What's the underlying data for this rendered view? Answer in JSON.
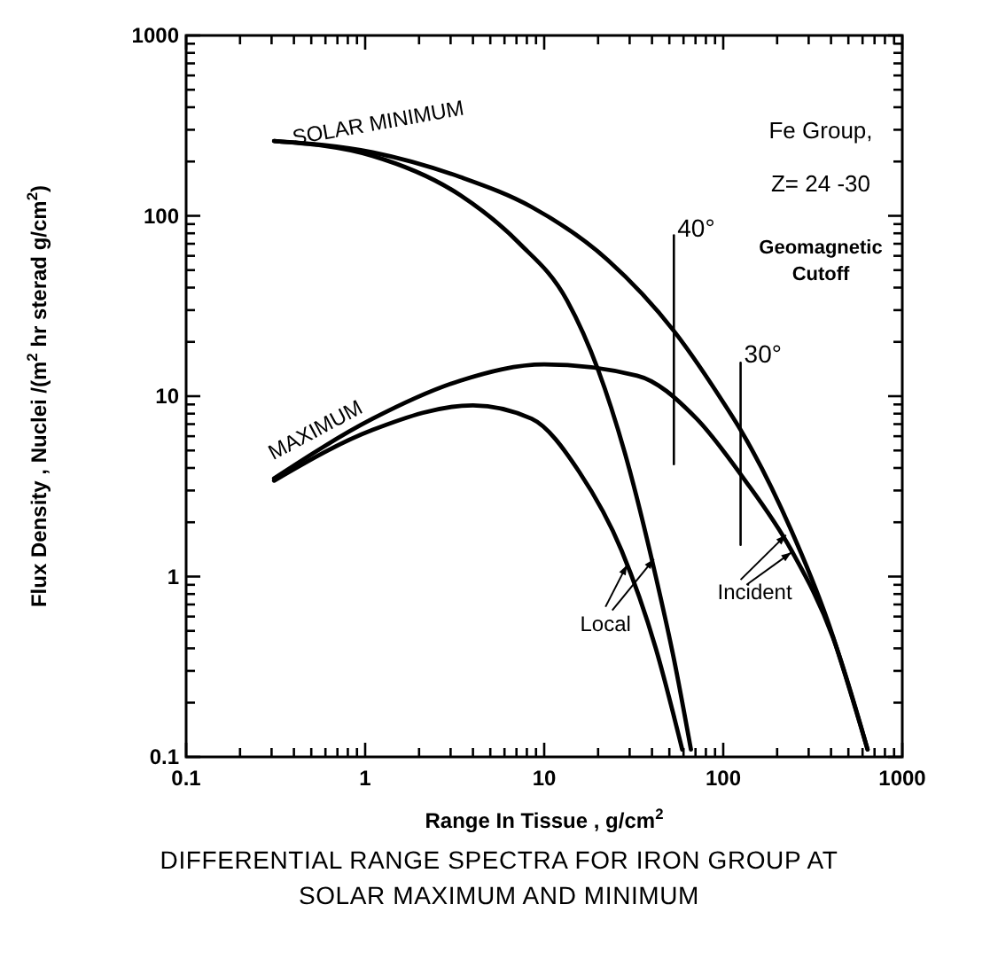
{
  "chart_data": {
    "type": "line",
    "title": "DIFFERENTIAL RANGE SPECTRA FOR IRON GROUP AT SOLAR MAXIMUM AND MINIMUM",
    "xlabel": "Range In Tissue , g/cm$^{2}$",
    "ylabel": "Flux Density , Nuclei /(m$^{2}$ hr sterad g/cm$^{2}$)",
    "log": "xy",
    "grid": false,
    "marker": "none",
    "line_style": "solid",
    "xlim": [
      0.1,
      1000
    ],
    "ylim": [
      0.1,
      1000
    ],
    "xticks": [
      0.1,
      {
        "value": 0.2,
        "label": null
      },
      {
        "value": 0.3,
        "label": null
      },
      {
        "value": 0.4,
        "label": null
      },
      {
        "value": 0.5,
        "label": null
      },
      {
        "value": 0.6,
        "label": null
      },
      {
        "value": 0.7,
        "label": null
      },
      {
        "value": 0.8,
        "label": null
      },
      {
        "value": 0.9,
        "label": null
      },
      1,
      {
        "value": 2,
        "label": null
      },
      {
        "value": 3,
        "label": null
      },
      {
        "value": 4,
        "label": null
      },
      {
        "value": 5,
        "label": null
      },
      {
        "value": 6,
        "label": null
      },
      {
        "value": 7,
        "label": null
      },
      {
        "value": 8,
        "label": null
      },
      {
        "value": 9,
        "label": null
      },
      10,
      {
        "value": 20,
        "label": null
      },
      {
        "value": 30,
        "label": null
      },
      {
        "value": 40,
        "label": null
      },
      {
        "value": 50,
        "label": null
      },
      {
        "value": 60,
        "label": null
      },
      {
        "value": 70,
        "label": null
      },
      {
        "value": 80,
        "label": null
      },
      {
        "value": 90,
        "label": null
      },
      100,
      {
        "value": 200,
        "label": null
      },
      {
        "value": 300,
        "label": null
      },
      {
        "value": 400,
        "label": null
      },
      {
        "value": 500,
        "label": null
      },
      {
        "value": 600,
        "label": null
      },
      {
        "value": 700,
        "label": null
      },
      {
        "value": 800,
        "label": null
      },
      {
        "value": 900,
        "label": null
      },
      1000
    ],
    "yticks": [
      0.1,
      {
        "value": 0.2,
        "label": null
      },
      {
        "value": 0.3,
        "label": null
      },
      {
        "value": 0.4,
        "label": null
      },
      {
        "value": 0.5,
        "label": null
      },
      {
        "value": 0.6,
        "label": null
      },
      {
        "value": 0.7,
        "label": null
      },
      {
        "value": 0.8,
        "label": null
      },
      {
        "value": 0.9,
        "label": null
      },
      1,
      {
        "value": 2,
        "label": null
      },
      {
        "value": 3,
        "label": null
      },
      {
        "value": 4,
        "label": null
      },
      {
        "value": 5,
        "label": null
      },
      {
        "value": 6,
        "label": null
      },
      {
        "value": 7,
        "label": null
      },
      {
        "value": 8,
        "label": null
      },
      {
        "value": 9,
        "label": null
      },
      10,
      {
        "value": 20,
        "label": null
      },
      {
        "value": 30,
        "label": null
      },
      {
        "value": 40,
        "label": null
      },
      {
        "value": 50,
        "label": null
      },
      {
        "value": 60,
        "label": null
      },
      {
        "value": 70,
        "label": null
      },
      {
        "value": 80,
        "label": null
      },
      {
        "value": 90,
        "label": null
      },
      100,
      {
        "value": 200,
        "label": null
      },
      {
        "value": 300,
        "label": null
      },
      {
        "value": 400,
        "label": null
      },
      {
        "value": 500,
        "label": null
      },
      {
        "value": 600,
        "label": null
      },
      {
        "value": 700,
        "label": null
      },
      {
        "value": 800,
        "label": null
      },
      {
        "value": 900,
        "label": null
      },
      1000
    ],
    "series": [
      {
        "color": "#000000",
        "x": [
          0.31,
          1.1,
          3.4,
          8.5,
          22.6,
          53,
          104,
          125,
          240,
          380,
          640
        ],
        "values": [
          260,
          225,
          164,
          112,
          57,
          23,
          8.7,
          6.5,
          1.8,
          0.58,
          0.11
        ]
      },
      {
        "color": "#000000",
        "x": [
          0.31,
          1.1,
          3.4,
          7.2,
          13.4,
          20,
          29,
          42,
          53,
          66
        ],
        "values": [
          260,
          215,
          130,
          71,
          34,
          14,
          4.4,
          1.0,
          0.35,
          0.11
        ]
      },
      {
        "color": "#000000",
        "x": [
          0.31,
          1.1,
          3.4,
          10,
          33,
          71,
          130,
          240,
          410,
          640
        ],
        "values": [
          3.5,
          7.5,
          12.2,
          15,
          13,
          7.5,
          3.5,
          1.4,
          0.46,
          0.11
        ]
      },
      {
        "color": "#000000",
        "x": [
          0.31,
          1.1,
          4.0,
          8.5,
          15.7,
          27,
          42,
          59
        ],
        "values": [
          3.4,
          6.5,
          8.9,
          7.5,
          3.8,
          1.4,
          0.4,
          0.11
        ]
      },
      {
        "color": "#000000",
        "x": [
          53,
          53
        ],
        "values": [
          78,
          4.2
        ]
      },
      {
        "color": "#000000",
        "x": [
          125,
          125
        ],
        "values": [
          15.3,
          1.5
        ]
      }
    ],
    "annotations": [
      "SOLAR MINIMUM",
      "MAXIMUM",
      "Fe Group,",
      "Z= 24 -30",
      {
        "text": "40°",
        "x": 53,
        "y": 80
      },
      {
        "text": "30°",
        "x": 125,
        "y": 16
      },
      "Geomagnetic",
      "Cutoff",
      "Local",
      "Incident"
    ]
  }
}
